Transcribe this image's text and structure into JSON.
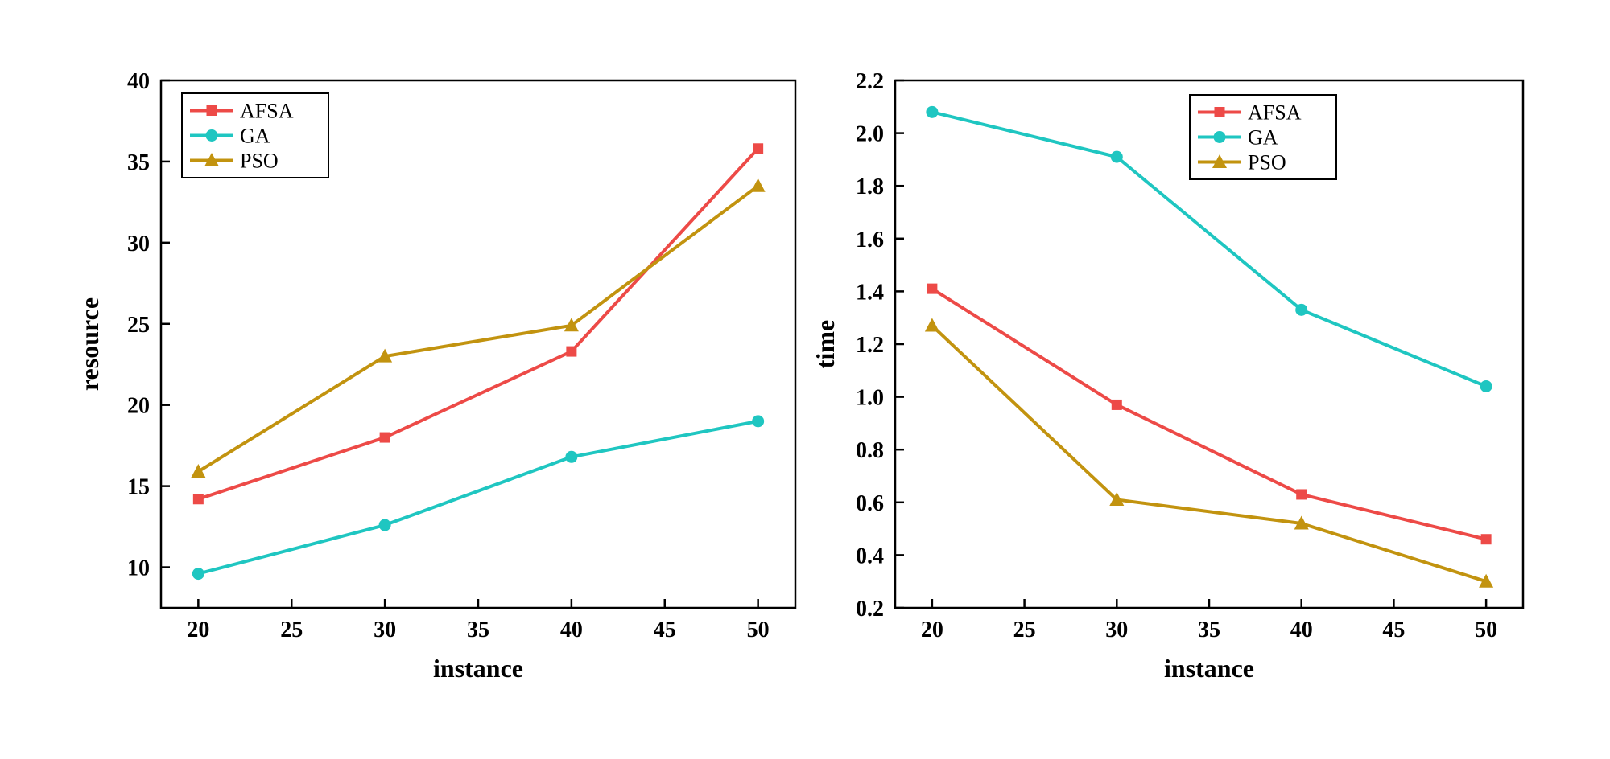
{
  "page": {
    "background": "#ffffff",
    "axis_color": "#000000"
  },
  "chart_data": [
    {
      "type": "line",
      "title": "",
      "xlabel": "instance",
      "ylabel": "resource",
      "x": [
        20,
        30,
        40,
        50
      ],
      "xlim": [
        18,
        52
      ],
      "ylim": [
        7.5,
        40
      ],
      "xticks": [
        20,
        25,
        30,
        35,
        40,
        45,
        50
      ],
      "xtick_labels": [
        "20",
        "25",
        "30",
        "35",
        "40",
        "45",
        "50"
      ],
      "yticks": [
        10,
        15,
        20,
        25,
        30,
        35,
        40
      ],
      "ytick_labels": [
        "10",
        "15",
        "20",
        "25",
        "30",
        "35",
        "40"
      ],
      "grid": false,
      "legend_position": "top-left",
      "series": [
        {
          "name": "AFSA",
          "color": "#ed4a47",
          "marker": "square",
          "values": [
            14.2,
            18.0,
            23.3,
            35.8
          ]
        },
        {
          "name": "GA",
          "color": "#1fc6c1",
          "marker": "circle",
          "values": [
            9.6,
            12.6,
            16.8,
            19.0
          ]
        },
        {
          "name": "PSO",
          "color": "#c2930f",
          "marker": "triangle",
          "values": [
            15.9,
            23.0,
            24.9,
            33.5
          ]
        }
      ]
    },
    {
      "type": "line",
      "title": "",
      "xlabel": "instance",
      "ylabel": "time",
      "x": [
        20,
        30,
        40,
        50
      ],
      "xlim": [
        18,
        52
      ],
      "ylim": [
        0.2,
        2.2
      ],
      "xticks": [
        20,
        25,
        30,
        35,
        40,
        45,
        50
      ],
      "xtick_labels": [
        "20",
        "25",
        "30",
        "35",
        "40",
        "45",
        "50"
      ],
      "yticks": [
        0.2,
        0.4,
        0.6,
        0.8,
        1.0,
        1.2,
        1.4,
        1.6,
        1.8,
        2.0,
        2.2
      ],
      "ytick_labels": [
        "0.2",
        "0.4",
        "0.6",
        "0.8",
        "1.0",
        "1.2",
        "1.4",
        "1.6",
        "1.8",
        "2.0",
        "2.2"
      ],
      "grid": false,
      "legend_position": "top-right",
      "series": [
        {
          "name": "AFSA",
          "color": "#ed4a47",
          "marker": "square",
          "values": [
            1.41,
            0.97,
            0.63,
            0.46
          ]
        },
        {
          "name": "GA",
          "color": "#1fc6c1",
          "marker": "circle",
          "values": [
            2.08,
            1.91,
            1.33,
            1.04
          ]
        },
        {
          "name": "PSO",
          "color": "#c2930f",
          "marker": "triangle",
          "values": [
            1.27,
            0.61,
            0.52,
            0.3
          ]
        }
      ]
    }
  ]
}
